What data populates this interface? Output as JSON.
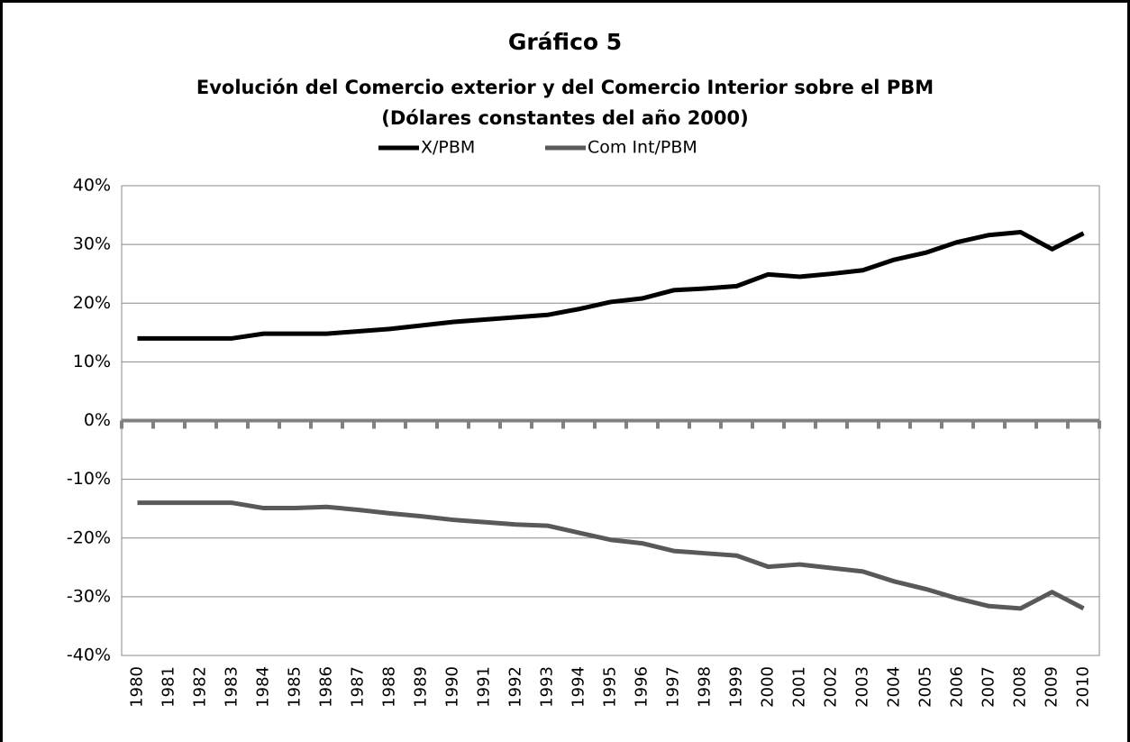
{
  "chart_data": {
    "type": "line",
    "title": "Gráfico 5",
    "subtitle": [
      "Evolución del Comercio exterior y del Comercio Interior  sobre el PBM",
      "(Dólares constantes del año 2000)"
    ],
    "categories": [
      "1980",
      "1981",
      "1982",
      "1983",
      "1984",
      "1985",
      "1986",
      "1987",
      "1988",
      "1989",
      "1990",
      "1991",
      "1992",
      "1993",
      "1994",
      "1995",
      "1996",
      "1997",
      "1998",
      "1999",
      "2000",
      "2001",
      "2002",
      "2003",
      "2004",
      "2005",
      "2006",
      "2007",
      "2008",
      "2009",
      "2010"
    ],
    "series": [
      {
        "name": "X/PBM",
        "color": "#000000",
        "values": [
          14,
          14,
          14,
          14,
          14.8,
          14.8,
          14.8,
          15.2,
          15.6,
          16.2,
          16.8,
          17.2,
          17.6,
          18,
          19,
          20.2,
          20.8,
          22.2,
          22.5,
          22.9,
          24.9,
          24.5,
          25,
          25.6,
          27.4,
          28.6,
          30.4,
          31.6,
          32.1,
          29.2,
          31.9
        ]
      },
      {
        "name": "Com Int/PBM",
        "color": "#595959",
        "values": [
          -14,
          -14,
          -14,
          -14,
          -14.9,
          -14.9,
          -14.7,
          -15.2,
          -15.8,
          -16.3,
          -16.9,
          -17.3,
          -17.7,
          -17.9,
          -19.1,
          -20.3,
          -20.9,
          -22.2,
          -22.6,
          -23,
          -24.9,
          -24.5,
          -25.1,
          -25.7,
          -27.4,
          -28.7,
          -30.3,
          -31.6,
          -32,
          -29.2,
          -32
        ]
      }
    ],
    "ylim": [
      -40,
      40
    ],
    "yticks": [
      {
        "value": -40,
        "label": "-40%"
      },
      {
        "value": -30,
        "label": "-30%"
      },
      {
        "value": -20,
        "label": "-20%"
      },
      {
        "value": -10,
        "label": "-10%"
      },
      {
        "value": 0,
        "label": "0%"
      },
      {
        "value": 10,
        "label": "10%"
      },
      {
        "value": 20,
        "label": "20%"
      },
      {
        "value": 30,
        "label": "30%"
      },
      {
        "value": 40,
        "label": "40%"
      }
    ],
    "grid": true,
    "legend": "top"
  }
}
